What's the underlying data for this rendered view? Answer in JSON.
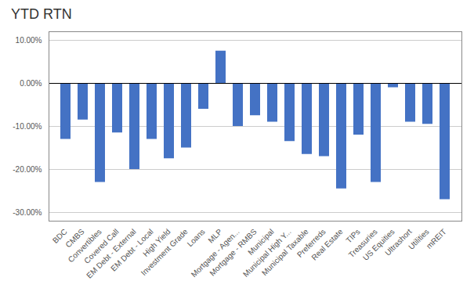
{
  "chart_data": {
    "type": "bar",
    "title": "YTD RTN",
    "categories": [
      "BDC",
      "CMBS",
      "Convertibles",
      "Covered Call",
      "EM Debt - External",
      "EM Debt - Local",
      "High Yield",
      "Investment Grade",
      "Loans",
      "MLP",
      "Mortgage - Agen...",
      "Mortgage - RMBS",
      "Municipal",
      "Municipal High Y...",
      "Municipal Taxable",
      "Preferreds",
      "Real Estate",
      "TIPs",
      "Treasuries",
      "US Equities",
      "Ultrashort",
      "Utilities",
      "mREIT"
    ],
    "values": [
      -13.0,
      -8.5,
      -23.0,
      -11.5,
      -20.0,
      -13.0,
      -17.5,
      -15.0,
      -6.0,
      7.5,
      -10.0,
      -7.5,
      -9.0,
      -13.5,
      -16.5,
      -17.0,
      -24.5,
      -12.0,
      -23.0,
      -1.0,
      -9.0,
      -9.5,
      -27.0
    ],
    "color": "#4472C4",
    "ylim": [
      -32,
      12
    ],
    "yticks": [
      {
        "value": -30.0,
        "label": "-30.00%"
      },
      {
        "value": -20.0,
        "label": "-20.00%"
      },
      {
        "value": -10.0,
        "label": "-10.00%"
      },
      {
        "value": 0.0,
        "label": "0.00%"
      },
      {
        "value": 10.0,
        "label": "10.00%"
      }
    ],
    "grid": true
  }
}
